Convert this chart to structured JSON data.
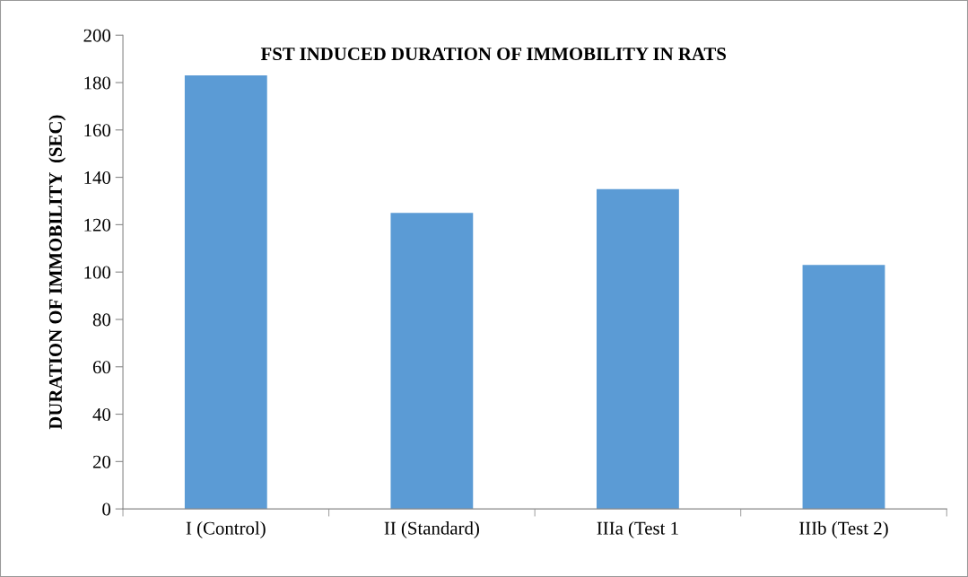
{
  "chart_data": {
    "type": "bar",
    "title": "FST INDUCED DURATION OF IMMOBILITY IN RATS",
    "ylabel": "DURATION OF IMMOBILITY  (SEC)",
    "categories": [
      "I (Control)",
      "II (Standard)",
      "IIIa (Test 1",
      "IIIb (Test 2)"
    ],
    "values": [
      183,
      125,
      135,
      103
    ],
    "color": "#5b9bd5",
    "ylim": [
      0,
      200
    ],
    "yticks": [
      0,
      20,
      40,
      60,
      80,
      100,
      120,
      140,
      160,
      180,
      200
    ],
    "grid": false,
    "legend": false
  }
}
